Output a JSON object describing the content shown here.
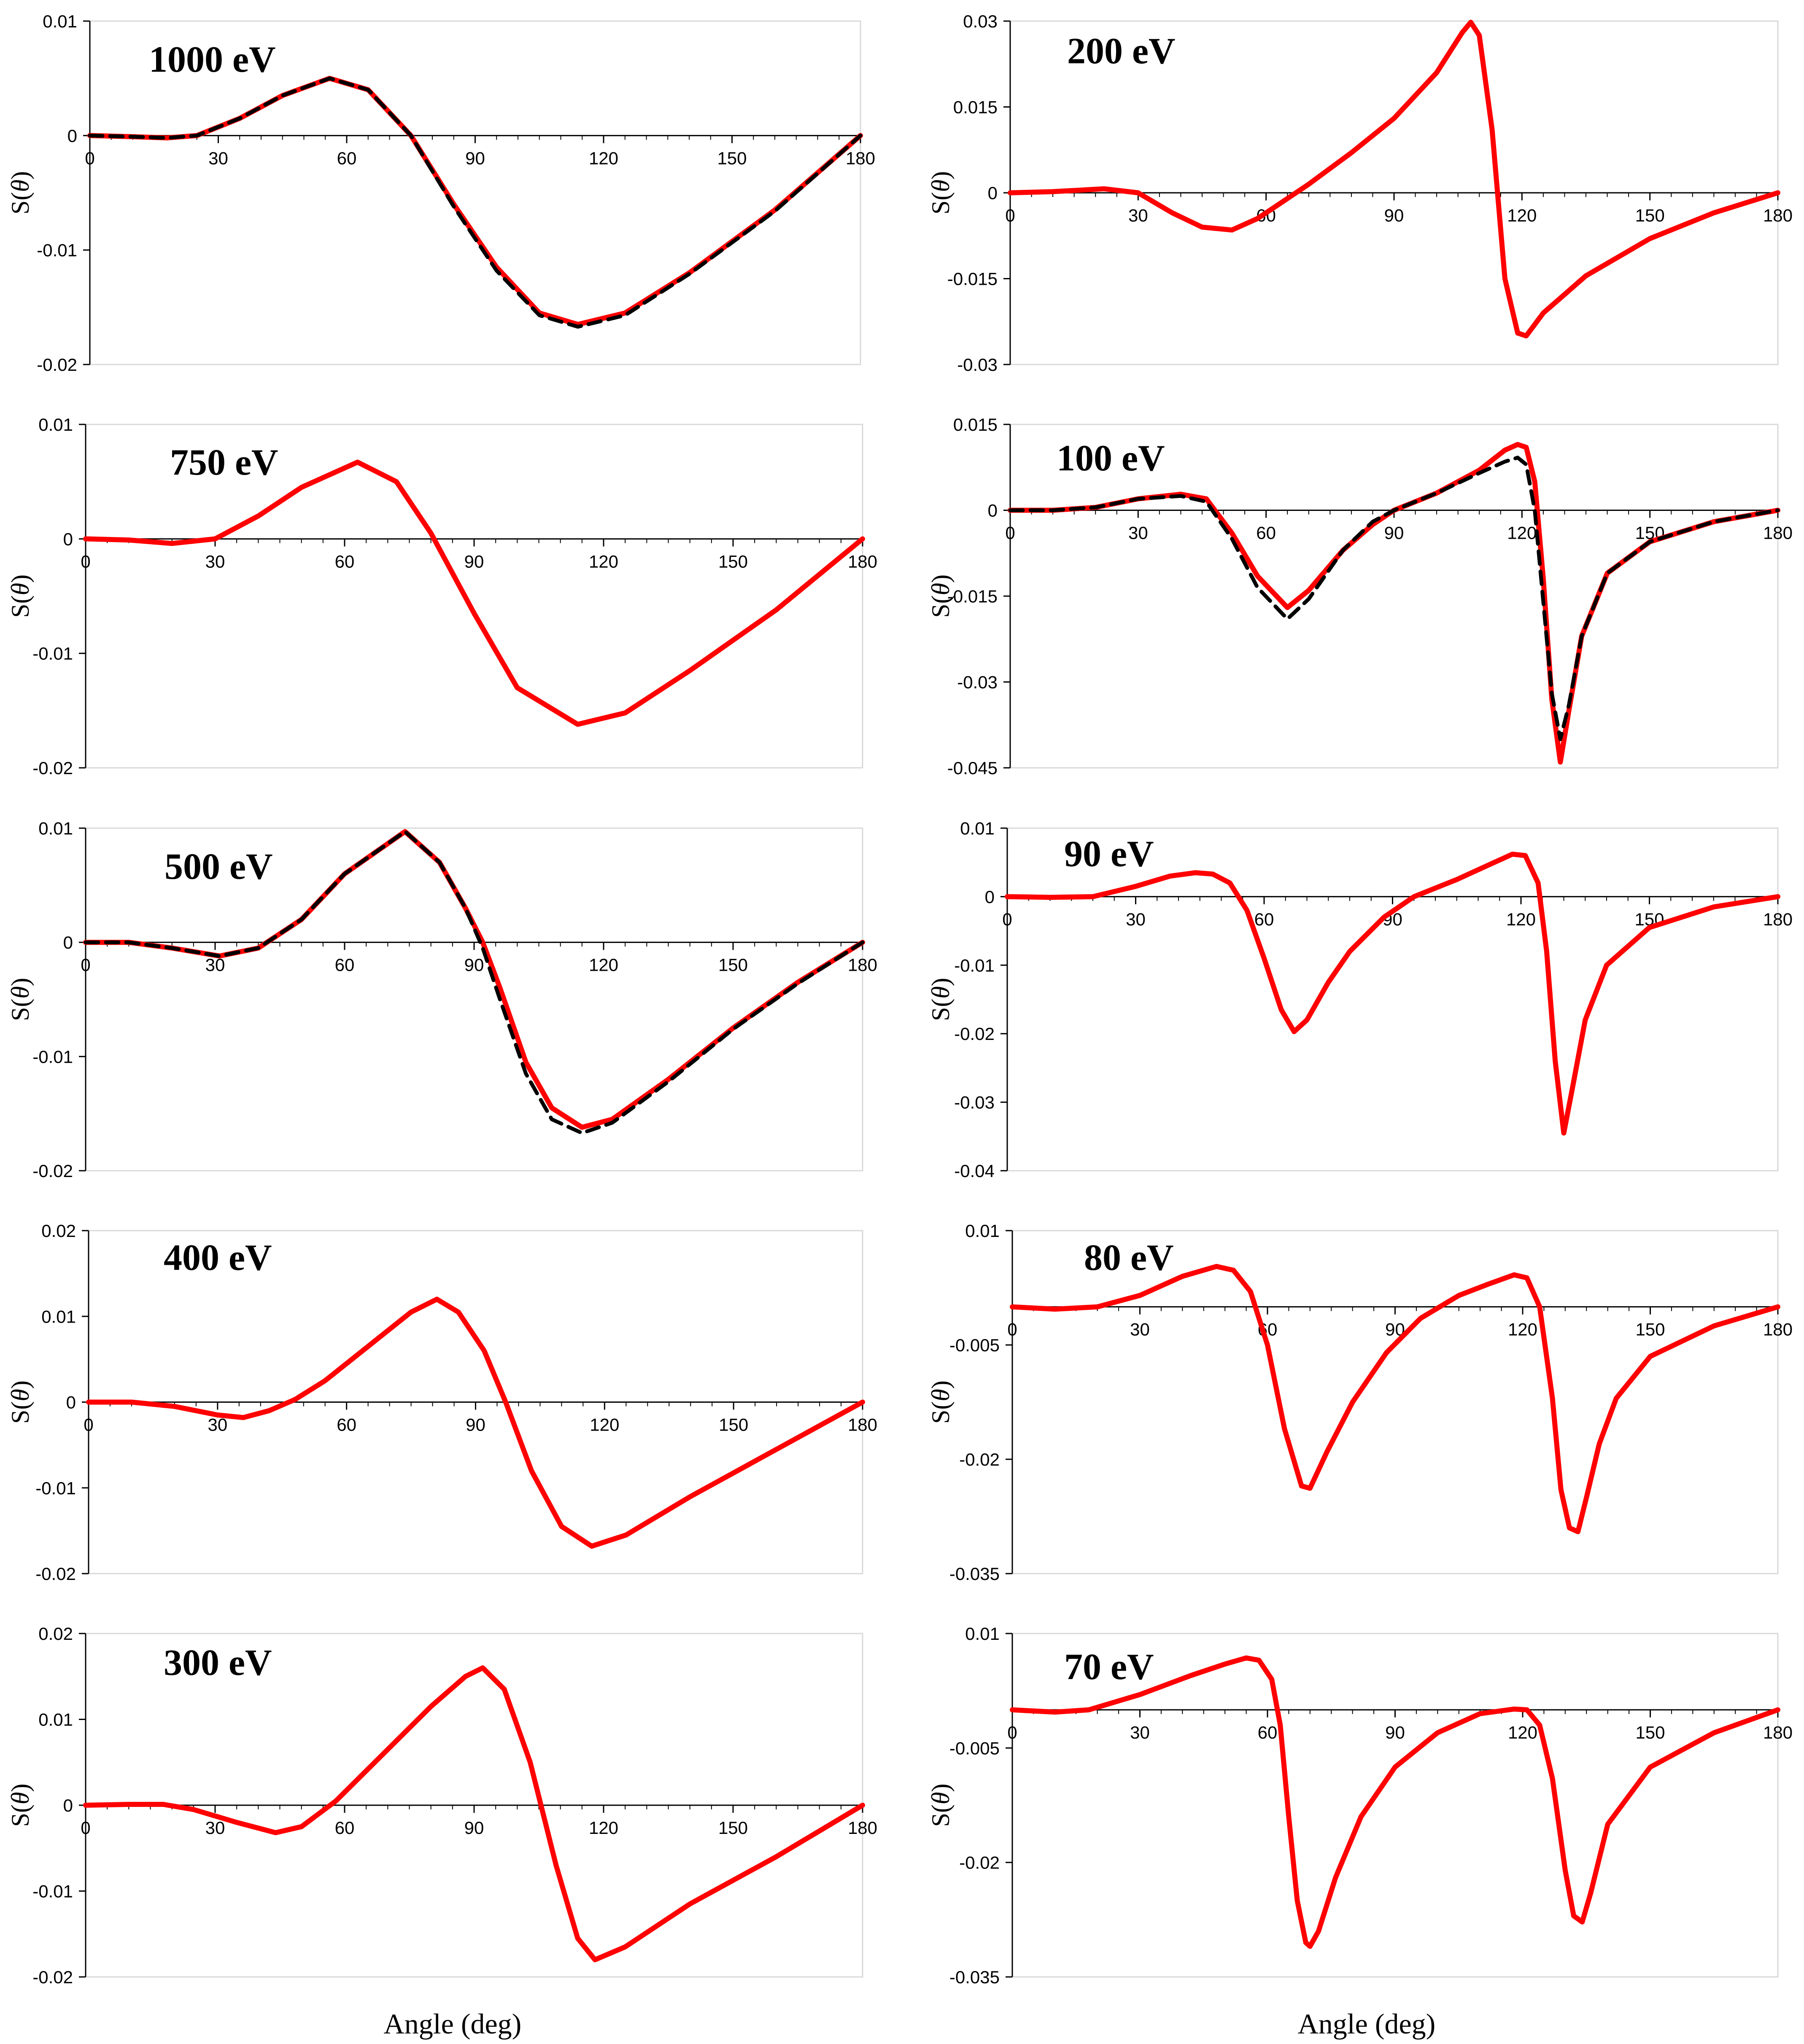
{
  "figure": {
    "xlabel": "Angle (deg)",
    "ylabel_prefix": "S(",
    "ylabel_symbol": "θ",
    "ylabel_suffix": ")"
  },
  "colors": {
    "model": "#ff0000",
    "reference": "#000000",
    "frame": "#d9d9d9",
    "axis": "#000000"
  },
  "chart_data": [
    {
      "type": "line",
      "title": "1000 eV",
      "xlabel": "Angle (deg)",
      "ylabel": "S(θ)",
      "xlim": [
        0,
        180
      ],
      "ylim": [
        -0.02,
        0.01
      ],
      "xticks": [
        "0",
        "30",
        "60",
        "90",
        "120",
        "150",
        "180"
      ],
      "yticks": [
        "0.01",
        "0",
        "-0.01",
        "-0.02"
      ],
      "series": [
        {
          "name": "red solid",
          "style": "solid",
          "x": [
            0,
            10,
            18,
            25,
            35,
            45,
            56,
            65,
            75,
            85,
            95,
            105,
            114,
            125,
            140,
            160,
            180
          ],
          "y": [
            0,
            -0.0001,
            -0.0002,
            0,
            0.0015,
            0.0035,
            0.005,
            0.004,
            0,
            -0.006,
            -0.0115,
            -0.0155,
            -0.0165,
            -0.0155,
            -0.012,
            -0.0065,
            0
          ]
        },
        {
          "name": "black dashed",
          "style": "dashed",
          "x": [
            0,
            10,
            18,
            25,
            35,
            45,
            56,
            65,
            75,
            85,
            95,
            105,
            114,
            125,
            140,
            160,
            180
          ],
          "y": [
            0,
            -0.0001,
            -0.0002,
            0,
            0.0015,
            0.0035,
            0.005,
            0.004,
            0,
            -0.0062,
            -0.0118,
            -0.0157,
            -0.0167,
            -0.0157,
            -0.0121,
            -0.0066,
            0
          ]
        }
      ]
    },
    {
      "type": "line",
      "title": "750 eV",
      "xlabel": "Angle (deg)",
      "ylabel": "S(θ)",
      "xlim": [
        0,
        180
      ],
      "ylim": [
        -0.02,
        0.01
      ],
      "xticks": [
        "0",
        "30",
        "60",
        "90",
        "120",
        "150",
        "180"
      ],
      "yticks": [
        "0.01",
        "0",
        "-0.01",
        "-0.02"
      ],
      "series": [
        {
          "name": "red solid",
          "style": "solid",
          "x": [
            0,
            10,
            20,
            30,
            40,
            50,
            63,
            72,
            80,
            90,
            100,
            114,
            125,
            140,
            160,
            180
          ],
          "y": [
            0,
            -0.0001,
            -0.0004,
            0,
            0.002,
            0.0045,
            0.0067,
            0.005,
            0.0005,
            -0.0065,
            -0.013,
            -0.0162,
            -0.0152,
            -0.0115,
            -0.0062,
            0
          ]
        }
      ]
    },
    {
      "type": "line",
      "title": "500 eV",
      "xlabel": "Angle (deg)",
      "ylabel": "S(θ)",
      "xlim": [
        0,
        180
      ],
      "ylim": [
        -0.02,
        0.01
      ],
      "xticks": [
        "0",
        "30",
        "60",
        "90",
        "120",
        "150",
        "180"
      ],
      "yticks": [
        "0.01",
        "0",
        "-0.01",
        "-0.02"
      ],
      "series": [
        {
          "name": "red solid",
          "style": "solid",
          "x": [
            0,
            10,
            20,
            31,
            40,
            50,
            60,
            74,
            82,
            88,
            92,
            96,
            102,
            108,
            115,
            122,
            135,
            150,
            165,
            180
          ],
          "y": [
            0,
            0,
            -0.0005,
            -0.0012,
            -0.0005,
            0.002,
            0.006,
            0.0097,
            0.007,
            0.003,
            0,
            -0.004,
            -0.0105,
            -0.0145,
            -0.0162,
            -0.0155,
            -0.012,
            -0.0075,
            -0.0035,
            0
          ]
        },
        {
          "name": "black dashed",
          "style": "dashed",
          "x": [
            0,
            10,
            20,
            31,
            40,
            50,
            60,
            74,
            82,
            88,
            92,
            96,
            102,
            108,
            115,
            122,
            135,
            150,
            165,
            180
          ],
          "y": [
            0,
            0,
            -0.0005,
            -0.0012,
            -0.0005,
            0.002,
            0.006,
            0.0097,
            0.007,
            0.003,
            -0.0005,
            -0.005,
            -0.0115,
            -0.0155,
            -0.0167,
            -0.0158,
            -0.0122,
            -0.0076,
            -0.0036,
            0
          ]
        }
      ]
    },
    {
      "type": "line",
      "title": "400 eV",
      "xlabel": "Angle (deg)",
      "ylabel": "S(θ)",
      "xlim": [
        0,
        180
      ],
      "ylim": [
        -0.02,
        0.02
      ],
      "xticks": [
        "0",
        "30",
        "60",
        "90",
        "120",
        "150",
        "180"
      ],
      "yticks": [
        "0.02",
        "0.01",
        "0",
        "-0.01",
        "-0.02"
      ],
      "series": [
        {
          "name": "red solid",
          "style": "solid",
          "x": [
            0,
            10,
            20,
            30,
            36,
            42,
            48,
            55,
            65,
            75,
            81,
            86,
            92,
            97,
            103,
            110,
            117,
            125,
            140,
            160,
            180
          ],
          "y": [
            0,
            0,
            -0.0005,
            -0.0015,
            -0.0018,
            -0.001,
            0.0003,
            0.0025,
            0.0065,
            0.0105,
            0.012,
            0.0105,
            0.006,
            0,
            -0.008,
            -0.0145,
            -0.0168,
            -0.0155,
            -0.011,
            -0.0055,
            0
          ]
        }
      ]
    },
    {
      "type": "line",
      "title": "300 eV",
      "xlabel": "Angle (deg)",
      "ylabel": "S(θ)",
      "xlim": [
        0,
        180
      ],
      "ylim": [
        -0.02,
        0.02
      ],
      "xticks": [
        "0",
        "30",
        "60",
        "90",
        "120",
        "150",
        "180"
      ],
      "yticks": [
        "0.02",
        "0.01",
        "0",
        "-0.01",
        "-0.02"
      ],
      "series": [
        {
          "name": "red solid",
          "style": "solid",
          "x": [
            0,
            10,
            18,
            25,
            35,
            44,
            50,
            58,
            70,
            80,
            88,
            92,
            97,
            103,
            109,
            114,
            118,
            125,
            140,
            160,
            180
          ],
          "y": [
            0,
            0.0001,
            0.0001,
            -0.0005,
            -0.002,
            -0.0032,
            -0.0025,
            0.0005,
            0.0065,
            0.0115,
            0.015,
            0.016,
            0.0135,
            0.005,
            -0.007,
            -0.0155,
            -0.018,
            -0.0165,
            -0.0115,
            -0.006,
            0
          ]
        }
      ]
    },
    {
      "type": "line",
      "title": "200 eV",
      "xlabel": "Angle (deg)",
      "ylabel": "S(θ)",
      "xlim": [
        0,
        180
      ],
      "ylim": [
        -0.03,
        0.03
      ],
      "xticks": [
        "0",
        "30",
        "60",
        "90",
        "120",
        "150",
        "180"
      ],
      "yticks": [
        "0.03",
        "0.015",
        "0",
        "-0.015",
        "-0.03"
      ],
      "series": [
        {
          "name": "red solid",
          "style": "solid",
          "x": [
            0,
            10,
            22,
            30,
            38,
            45,
            52,
            58,
            64,
            70,
            80,
            90,
            100,
            106,
            108,
            110,
            113,
            116,
            119,
            121,
            125,
            135,
            150,
            165,
            180
          ],
          "y": [
            0,
            0.0002,
            0.0007,
            0,
            -0.0035,
            -0.006,
            -0.0065,
            -0.0045,
            -0.0015,
            0.0015,
            0.007,
            0.013,
            0.021,
            0.028,
            0.0298,
            0.0275,
            0.011,
            -0.015,
            -0.0245,
            -0.025,
            -0.021,
            -0.0145,
            -0.008,
            -0.0035,
            0
          ]
        }
      ]
    },
    {
      "type": "line",
      "title": "100 eV",
      "xlabel": "Angle (deg)",
      "ylabel": "S(θ)",
      "xlim": [
        0,
        180
      ],
      "ylim": [
        -0.045,
        0.015
      ],
      "xticks": [
        "0",
        "30",
        "60",
        "90",
        "120",
        "150",
        "180"
      ],
      "yticks": [
        "0.015",
        "0",
        "-0.015",
        "-0.03",
        "-0.045"
      ],
      "series": [
        {
          "name": "red solid",
          "style": "solid",
          "x": [
            0,
            10,
            20,
            30,
            40,
            46,
            52,
            58,
            65,
            70,
            78,
            85,
            90,
            100,
            110,
            116,
            119,
            121,
            123,
            125,
            127,
            129,
            131,
            134,
            140,
            150,
            165,
            180
          ],
          "y": [
            0,
            0,
            0.0005,
            0.002,
            0.0028,
            0.002,
            -0.004,
            -0.0115,
            -0.017,
            -0.014,
            -0.007,
            -0.0025,
            0,
            0.003,
            0.007,
            0.0105,
            0.0115,
            0.011,
            0.005,
            -0.012,
            -0.033,
            -0.044,
            -0.035,
            -0.022,
            -0.011,
            -0.0055,
            -0.002,
            0
          ]
        },
        {
          "name": "black dashed",
          "style": "dashed",
          "x": [
            0,
            10,
            20,
            30,
            40,
            46,
            52,
            58,
            65,
            70,
            78,
            85,
            90,
            100,
            110,
            116,
            119,
            121,
            123,
            125,
            127,
            129,
            131,
            134,
            140,
            150,
            165,
            180
          ],
          "y": [
            0,
            0,
            0.0005,
            0.002,
            0.0025,
            0.0015,
            -0.005,
            -0.0135,
            -0.019,
            -0.0155,
            -0.007,
            -0.002,
            0,
            0.003,
            0.0065,
            0.0085,
            0.0092,
            0.008,
            0.0,
            -0.016,
            -0.032,
            -0.04,
            -0.034,
            -0.022,
            -0.011,
            -0.0055,
            -0.002,
            0
          ]
        }
      ]
    },
    {
      "type": "line",
      "title": "90 eV",
      "xlabel": "Angle (deg)",
      "ylabel": "S(θ)",
      "xlim": [
        0,
        180
      ],
      "ylim": [
        -0.04,
        0.01
      ],
      "xticks": [
        "0",
        "30",
        "60",
        "90",
        "120",
        "150",
        "180"
      ],
      "yticks": [
        "0.01",
        "0",
        "-0.01",
        "-0.02",
        "-0.03",
        "-0.04"
      ],
      "series": [
        {
          "name": "red solid",
          "style": "solid",
          "x": [
            0,
            10,
            20,
            30,
            38,
            44,
            48,
            52,
            56,
            60,
            64,
            67,
            70,
            75,
            80,
            88,
            95,
            105,
            112,
            118,
            121,
            124,
            126,
            128,
            130,
            132,
            135,
            140,
            150,
            165,
            180
          ],
          "y": [
            0,
            -0.0001,
            0,
            0.0015,
            0.003,
            0.0035,
            0.0033,
            0.002,
            -0.002,
            -0.009,
            -0.0165,
            -0.0197,
            -0.018,
            -0.0125,
            -0.008,
            -0.003,
            0,
            0.0025,
            0.0045,
            0.0062,
            0.006,
            0.002,
            -0.008,
            -0.024,
            -0.0345,
            -0.028,
            -0.018,
            -0.01,
            -0.0045,
            -0.0015,
            0
          ]
        }
      ]
    },
    {
      "type": "line",
      "title": "80 eV",
      "xlabel": "Angle (deg)",
      "ylabel": "S(θ)",
      "xlim": [
        0,
        180
      ],
      "ylim": [
        -0.035,
        0.01
      ],
      "xticks": [
        "0",
        "30",
        "60",
        "90",
        "120",
        "150",
        "180"
      ],
      "yticks": [
        "0.01",
        "-0.005",
        "-0.02",
        "-0.035"
      ],
      "series": [
        {
          "name": "red solid",
          "style": "solid",
          "x": [
            0,
            10,
            20,
            30,
            40,
            48,
            52,
            56,
            60,
            64,
            68,
            70,
            74,
            80,
            88,
            96,
            105,
            112,
            118,
            121,
            124,
            127,
            129,
            131,
            133,
            135,
            138,
            142,
            150,
            165,
            180
          ],
          "y": [
            0,
            -0.0003,
            0,
            0.0015,
            0.004,
            0.0053,
            0.0048,
            0.002,
            -0.005,
            -0.016,
            -0.0235,
            -0.0238,
            -0.019,
            -0.0125,
            -0.006,
            -0.0015,
            0.0015,
            0.003,
            0.0042,
            0.0038,
            0,
            -0.012,
            -0.024,
            -0.029,
            -0.0295,
            -0.025,
            -0.018,
            -0.012,
            -0.0065,
            -0.0025,
            0
          ]
        }
      ]
    },
    {
      "type": "line",
      "title": "70 eV",
      "xlabel": "Angle (deg)",
      "ylabel": "S(θ)",
      "xlim": [
        0,
        180
      ],
      "ylim": [
        -0.035,
        0.01
      ],
      "xticks": [
        "0",
        "30",
        "60",
        "90",
        "120",
        "150",
        "180"
      ],
      "yticks": [
        "0.01",
        "-0.005",
        "-0.02",
        "-0.035"
      ],
      "series": [
        {
          "name": "red solid",
          "style": "solid",
          "x": [
            0,
            10,
            18,
            30,
            42,
            50,
            55,
            58,
            61,
            63,
            65,
            67,
            69,
            70,
            72,
            76,
            82,
            90,
            100,
            110,
            118,
            121,
            124,
            127,
            130,
            132,
            134,
            136,
            140,
            150,
            165,
            180
          ],
          "y": [
            0,
            -0.0003,
            0,
            0.002,
            0.0045,
            0.006,
            0.0068,
            0.0065,
            0.004,
            -0.002,
            -0.014,
            -0.025,
            -0.0305,
            -0.031,
            -0.029,
            -0.022,
            -0.014,
            -0.0075,
            -0.003,
            -0.0005,
            0.0001,
            0,
            -0.002,
            -0.009,
            -0.021,
            -0.027,
            -0.0278,
            -0.024,
            -0.015,
            -0.0075,
            -0.003,
            0
          ]
        }
      ]
    }
  ]
}
